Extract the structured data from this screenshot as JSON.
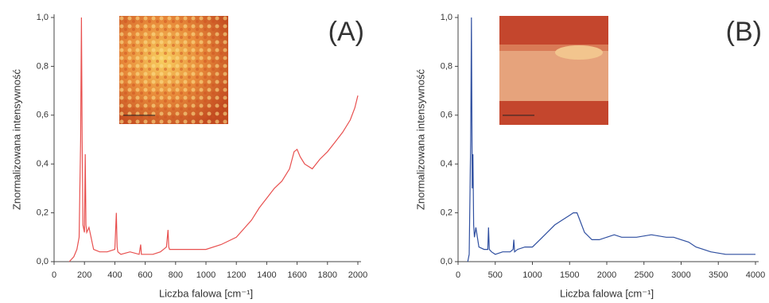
{
  "chart_data": [
    {
      "type": "line",
      "annotation": "(A)",
      "x_label": "Liczba falowa [cm⁻¹]",
      "y_label": "Znormalizowana intensywność",
      "color": "#e8504f",
      "x": [
        100,
        130,
        150,
        165,
        175,
        180,
        185,
        190,
        200,
        205,
        210,
        215,
        230,
        260,
        300,
        350,
        400,
        410,
        415,
        420,
        440,
        500,
        560,
        570,
        575,
        580,
        600,
        650,
        700,
        740,
        750,
        755,
        760,
        780,
        850,
        900,
        1000,
        1100,
        1200,
        1300,
        1350,
        1400,
        1450,
        1500,
        1550,
        1580,
        1600,
        1620,
        1650,
        1700,
        1750,
        1800,
        1850,
        1900,
        1950,
        1980,
        2000
      ],
      "values": [
        0,
        0.02,
        0.05,
        0.1,
        0.5,
        1.0,
        0.5,
        0.15,
        0.12,
        0.44,
        0.15,
        0.12,
        0.14,
        0.05,
        0.04,
        0.04,
        0.05,
        0.2,
        0.06,
        0.04,
        0.03,
        0.04,
        0.03,
        0.07,
        0.03,
        0.03,
        0.03,
        0.03,
        0.04,
        0.06,
        0.13,
        0.06,
        0.05,
        0.05,
        0.05,
        0.05,
        0.05,
        0.07,
        0.1,
        0.17,
        0.22,
        0.26,
        0.3,
        0.33,
        0.38,
        0.45,
        0.46,
        0.43,
        0.4,
        0.38,
        0.42,
        0.45,
        0.49,
        0.53,
        0.58,
        0.63,
        0.68
      ],
      "xlim": [
        0,
        2000
      ],
      "xticks": [
        0,
        200,
        400,
        600,
        800,
        1000,
        1200,
        1400,
        1600,
        1800,
        2000
      ],
      "ylim": [
        0,
        1
      ],
      "yticks": [
        {
          "value": 0,
          "label": "0,0"
        },
        {
          "value": 0.2,
          "label": "0,2"
        },
        {
          "value": 0.4,
          "label": "0,4"
        },
        {
          "value": 0.6,
          "label": "0,6"
        },
        {
          "value": 0.8,
          "label": "0,8"
        },
        {
          "value": 1,
          "label": "1,0"
        }
      ]
    },
    {
      "type": "line",
      "annotation": "(B)",
      "x_label": "Liczba falowa [cm⁻¹]",
      "y_label": "Znormalizowana intensywność",
      "color": "#2f4fa0",
      "x": [
        130,
        150,
        170,
        180,
        190,
        200,
        210,
        220,
        240,
        280,
        350,
        400,
        410,
        420,
        450,
        500,
        600,
        700,
        740,
        750,
        760,
        800,
        900,
        1000,
        1100,
        1200,
        1300,
        1400,
        1500,
        1550,
        1600,
        1650,
        1700,
        1800,
        1900,
        2000,
        2100,
        2200,
        2400,
        2600,
        2800,
        2900,
        3000,
        3100,
        3200,
        3400,
        3600,
        3800,
        4000
      ],
      "values": [
        0,
        0.03,
        0.5,
        1.0,
        0.3,
        0.44,
        0.15,
        0.1,
        0.14,
        0.06,
        0.05,
        0.05,
        0.14,
        0.05,
        0.04,
        0.03,
        0.04,
        0.04,
        0.05,
        0.09,
        0.04,
        0.05,
        0.06,
        0.06,
        0.09,
        0.12,
        0.15,
        0.17,
        0.19,
        0.2,
        0.2,
        0.16,
        0.12,
        0.09,
        0.09,
        0.1,
        0.11,
        0.1,
        0.1,
        0.11,
        0.1,
        0.1,
        0.09,
        0.08,
        0.06,
        0.04,
        0.03,
        0.03,
        0.03
      ],
      "xlim": [
        0,
        4000
      ],
      "xticks": [
        0,
        500,
        1000,
        1500,
        2000,
        2500,
        3000,
        3500,
        4000
      ],
      "ylim": [
        0,
        1
      ],
      "yticks": [
        {
          "value": 0,
          "label": "0,0"
        },
        {
          "value": 0.2,
          "label": "0,2"
        },
        {
          "value": 0.4,
          "label": "0,4"
        },
        {
          "value": 0.6,
          "label": "0,6"
        },
        {
          "value": 0.8,
          "label": "0,8"
        },
        {
          "value": 1,
          "label": "1,0"
        }
      ]
    }
  ]
}
